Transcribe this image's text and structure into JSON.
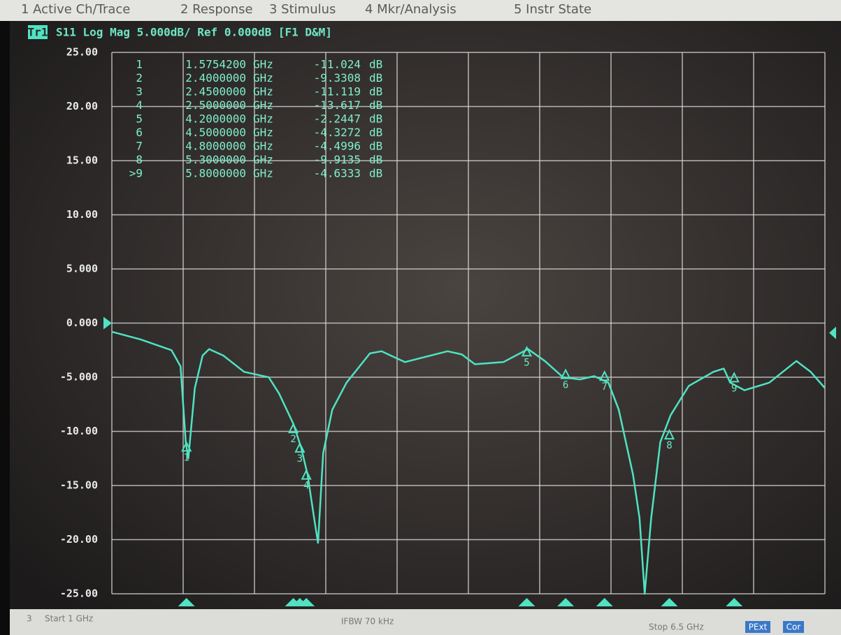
{
  "menu": [
    "1 Active Ch/Trace",
    "2 Response",
    "3 Stimulus",
    "4 Mkr/Analysis",
    "5 Instr State"
  ],
  "chart_data": {
    "type": "line",
    "trace_label": "Tr1",
    "title": "S11 Log Mag 5.000dB/ Ref 0.000dB [F1 D&M]",
    "x_unit": "GHz",
    "y_unit": "dB",
    "color": "#4fe3c2",
    "grid": true,
    "xlim": [
      1,
      6.5
    ],
    "ylim": [
      -25,
      25
    ],
    "yticks": [
      {
        "value": 25,
        "label": "25.00"
      },
      {
        "value": 20,
        "label": "20.00"
      },
      {
        "value": 15,
        "label": "15.00"
      },
      {
        "value": 10,
        "label": "10.00"
      },
      {
        "value": 5,
        "label": "5.000"
      },
      {
        "value": 0,
        "label": "0.000"
      },
      {
        "value": -5,
        "label": "-5.000"
      },
      {
        "value": -10,
        "label": "-10.00"
      },
      {
        "value": -15,
        "label": "-15.00"
      },
      {
        "value": -20,
        "label": "-20.00"
      },
      {
        "value": -25,
        "label": "-25.00"
      }
    ],
    "x": [
      1.0,
      1.22,
      1.46,
      1.53,
      1.57,
      1.59,
      1.64,
      1.7,
      1.75,
      1.86,
      2.02,
      2.21,
      2.29,
      2.4,
      2.46,
      2.51,
      2.56,
      2.59,
      2.63,
      2.7,
      2.81,
      2.99,
      3.08,
      3.26,
      3.59,
      3.7,
      3.8,
      4.02,
      4.21,
      4.34,
      4.48,
      4.61,
      4.72,
      4.83,
      4.91,
      5.02,
      5.07,
      5.11,
      5.16,
      5.23,
      5.31,
      5.45,
      5.64,
      5.72,
      5.77,
      5.88,
      6.07,
      6.28,
      6.39,
      6.5
    ],
    "values": [
      -0.8,
      -1.5,
      -2.5,
      -4,
      -11,
      -12.5,
      -6,
      -3,
      -2.4,
      -3,
      -4.5,
      -5,
      -6.5,
      -9.3,
      -11.5,
      -14,
      -18,
      -20.3,
      -12,
      -8,
      -5.5,
      -2.8,
      -2.6,
      -3.6,
      -2.6,
      -2.9,
      -3.8,
      -3.6,
      -2.4,
      -3.5,
      -5,
      -5.2,
      -4.9,
      -5.5,
      -8,
      -14,
      -18,
      -25,
      -18,
      -11,
      -8.5,
      -5.8,
      -4.5,
      -4.2,
      -5.5,
      -6.2,
      -5.5,
      -3.5,
      -4.5,
      -6
    ],
    "markers": [
      {
        "id": "1",
        "row_label": "1",
        "x": {
          "value": 1.57542,
          "label": "1.5754200"
        },
        "y": -11.024
      },
      {
        "id": "2",
        "row_label": "2",
        "x": {
          "value": 2.4,
          "label": "2.4000000"
        },
        "y": -9.3308
      },
      {
        "id": "3",
        "row_label": "3",
        "x": {
          "value": 2.45,
          "label": "2.4500000"
        },
        "y": -11.119
      },
      {
        "id": "4",
        "row_label": "4",
        "x": {
          "value": 2.5,
          "label": "2.5000000"
        },
        "y": -13.617
      },
      {
        "id": "5",
        "row_label": "5",
        "x": {
          "value": 4.2,
          "label": "4.2000000"
        },
        "y": -2.2447
      },
      {
        "id": "6",
        "row_label": "6",
        "x": {
          "value": 4.5,
          "label": "4.5000000"
        },
        "y": -4.3272
      },
      {
        "id": "7",
        "row_label": "7",
        "x": {
          "value": 4.8,
          "label": "4.8000000"
        },
        "y": -4.4996
      },
      {
        "id": "8",
        "row_label": "8",
        "x": {
          "value": 5.3,
          "label": "5.3000000"
        },
        "y": -9.9135
      },
      {
        "id": "9",
        "row_label": ">9",
        "x": {
          "value": 5.8,
          "label": "5.8000000"
        },
        "y": -4.6333
      }
    ]
  },
  "footer": {
    "channel": "3",
    "start": "Start 1 GHz",
    "ifbw": "IFBW 70 kHz",
    "stop": "Stop 6.5 GHz",
    "flags": [
      "PExt",
      "Cor"
    ]
  }
}
